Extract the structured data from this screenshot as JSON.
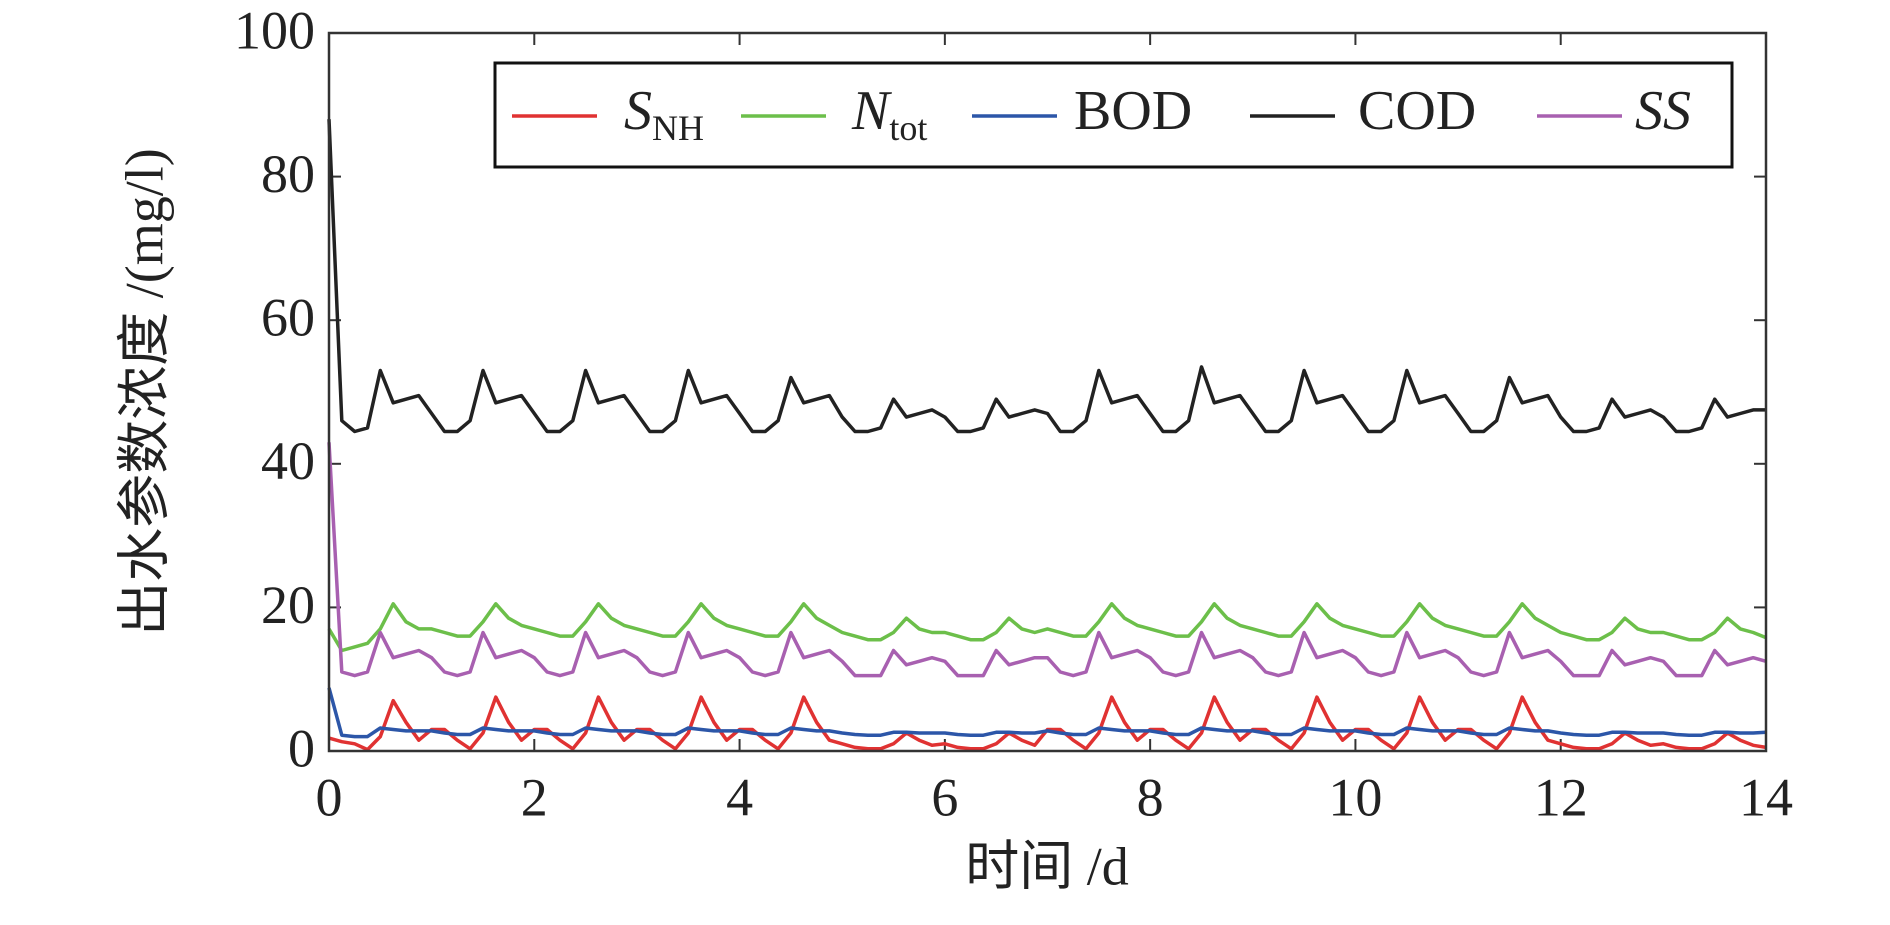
{
  "chart_data": {
    "type": "line",
    "x_label": "时间 /d",
    "y_label": "出水参数浓度 /(mg/l)",
    "xlim": [
      0,
      14
    ],
    "xticks": [
      0,
      2,
      4,
      6,
      8,
      10,
      12,
      14
    ],
    "ylim": [
      0,
      100
    ],
    "yticks": [
      0,
      20,
      40,
      60,
      80,
      100
    ],
    "legend": "top-right",
    "x": [
      0,
      0.125,
      0.25,
      0.375,
      0.5,
      0.625,
      0.75,
      0.875,
      1,
      1.125,
      1.25,
      1.375,
      1.5,
      1.625,
      1.75,
      1.875,
      2,
      2.125,
      2.25,
      2.375,
      2.5,
      2.625,
      2.75,
      2.875,
      3,
      3.125,
      3.25,
      3.375,
      3.5,
      3.625,
      3.75,
      3.875,
      4,
      4.125,
      4.25,
      4.375,
      4.5,
      4.625,
      4.75,
      4.875,
      5,
      5.125,
      5.25,
      5.375,
      5.5,
      5.625,
      5.75,
      5.875,
      6,
      6.125,
      6.25,
      6.375,
      6.5,
      6.625,
      6.75,
      6.875,
      7,
      7.125,
      7.25,
      7.375,
      7.5,
      7.625,
      7.75,
      7.875,
      8,
      8.125,
      8.25,
      8.375,
      8.5,
      8.625,
      8.75,
      8.875,
      9,
      9.125,
      9.25,
      9.375,
      9.5,
      9.625,
      9.75,
      9.875,
      10,
      10.125,
      10.25,
      10.375,
      10.5,
      10.625,
      10.75,
      10.875,
      11,
      11.125,
      11.25,
      11.375,
      11.5,
      11.625,
      11.75,
      11.875,
      12,
      12.125,
      12.25,
      12.375,
      12.5,
      12.625,
      12.75,
      12.875,
      13,
      13.125,
      13.25,
      13.375,
      13.5,
      13.625,
      13.75,
      13.875,
      14
    ],
    "series": [
      {
        "name": [
          "S",
          "NH"
        ],
        "italic": true,
        "color": "#e03232",
        "values": [
          1.8,
          1.3,
          1,
          0.2,
          2,
          7,
          4,
          1.5,
          3,
          3,
          1.5,
          0.3,
          2.5,
          7.5,
          4,
          1.5,
          3,
          3,
          1.5,
          0.3,
          2.5,
          7.5,
          4,
          1.5,
          3,
          3,
          1.5,
          0.3,
          2.5,
          7.5,
          4,
          1.5,
          3,
          3,
          1.5,
          0.3,
          2.5,
          7.5,
          4,
          1.5,
          1,
          0.5,
          0.3,
          0.3,
          1,
          2.5,
          1.5,
          0.8,
          1,
          0.5,
          0.3,
          0.3,
          1,
          2.5,
          1.5,
          0.8,
          3,
          3,
          1.5,
          0.3,
          2.5,
          7.5,
          4,
          1.5,
          3,
          3,
          1.5,
          0.3,
          2.5,
          7.5,
          4,
          1.5,
          3,
          3,
          1.5,
          0.3,
          2.5,
          7.5,
          4,
          1.5,
          3,
          3,
          1.5,
          0.3,
          2.5,
          7.5,
          4,
          1.5,
          3,
          3,
          1.5,
          0.3,
          2.5,
          7.5,
          4,
          1.5,
          1,
          0.5,
          0.3,
          0.3,
          1,
          2.5,
          1.5,
          0.8,
          1,
          0.5,
          0.3,
          0.3,
          1,
          2.5,
          1.5,
          0.8,
          0.5
        ]
      },
      {
        "name": [
          "N",
          "tot"
        ],
        "italic": true,
        "color": "#6cbf4a",
        "values": [
          17,
          14,
          14.5,
          15,
          17,
          20.5,
          18,
          17,
          17,
          16.5,
          16,
          16,
          18,
          20.5,
          18.5,
          17.5,
          17,
          16.5,
          16,
          16,
          18,
          20.5,
          18.5,
          17.5,
          17,
          16.5,
          16,
          16,
          18,
          20.5,
          18.5,
          17.5,
          17,
          16.5,
          16,
          16,
          18,
          20.5,
          18.5,
          17.5,
          16.5,
          16,
          15.5,
          15.5,
          16.5,
          18.5,
          17,
          16.5,
          16.5,
          16,
          15.5,
          15.5,
          16.5,
          18.5,
          17,
          16.5,
          17,
          16.5,
          16,
          16,
          18,
          20.5,
          18.5,
          17.5,
          17,
          16.5,
          16,
          16,
          18,
          20.5,
          18.5,
          17.5,
          17,
          16.5,
          16,
          16,
          18,
          20.5,
          18.5,
          17.5,
          17,
          16.5,
          16,
          16,
          18,
          20.5,
          18.5,
          17.5,
          17,
          16.5,
          16,
          16,
          18,
          20.5,
          18.5,
          17.5,
          16.5,
          16,
          15.5,
          15.5,
          16.5,
          18.5,
          17,
          16.5,
          16.5,
          16,
          15.5,
          15.5,
          16.5,
          18.5,
          17,
          16.5,
          15.8
        ]
      },
      {
        "name": [
          "BOD"
        ],
        "italic": false,
        "color": "#2c56a8",
        "values": [
          8.8,
          2.2,
          2,
          2,
          3.2,
          3,
          2.8,
          2.8,
          2.8,
          2.5,
          2.3,
          2.3,
          3.2,
          3,
          2.8,
          2.8,
          2.8,
          2.5,
          2.3,
          2.3,
          3.2,
          3,
          2.8,
          2.8,
          2.8,
          2.5,
          2.3,
          2.3,
          3.2,
          3,
          2.8,
          2.8,
          2.8,
          2.5,
          2.3,
          2.3,
          3.2,
          3,
          2.8,
          2.8,
          2.5,
          2.3,
          2.2,
          2.2,
          2.6,
          2.6,
          2.5,
          2.5,
          2.5,
          2.3,
          2.2,
          2.2,
          2.6,
          2.6,
          2.5,
          2.5,
          2.8,
          2.5,
          2.3,
          2.3,
          3.2,
          3,
          2.8,
          2.8,
          2.8,
          2.5,
          2.3,
          2.3,
          3.2,
          3,
          2.8,
          2.8,
          2.8,
          2.5,
          2.3,
          2.3,
          3.2,
          3,
          2.8,
          2.8,
          2.8,
          2.5,
          2.3,
          2.3,
          3.2,
          3,
          2.8,
          2.8,
          2.8,
          2.5,
          2.3,
          2.3,
          3.2,
          3,
          2.8,
          2.8,
          2.5,
          2.3,
          2.2,
          2.2,
          2.6,
          2.6,
          2.5,
          2.5,
          2.5,
          2.3,
          2.2,
          2.2,
          2.6,
          2.6,
          2.5,
          2.5,
          2.6
        ]
      },
      {
        "name": [
          "COD"
        ],
        "italic": false,
        "color": "#222222",
        "values": [
          88,
          46,
          44.5,
          45,
          53,
          48.5,
          49,
          49.5,
          47,
          44.5,
          44.5,
          46,
          53,
          48.5,
          49,
          49.5,
          47,
          44.5,
          44.5,
          46,
          53,
          48.5,
          49,
          49.5,
          47,
          44.5,
          44.5,
          46,
          53,
          48.5,
          49,
          49.5,
          47,
          44.5,
          44.5,
          46,
          52,
          48.5,
          49,
          49.5,
          46.5,
          44.5,
          44.5,
          45,
          49,
          46.5,
          47,
          47.5,
          46.5,
          44.5,
          44.5,
          45,
          49,
          46.5,
          47,
          47.5,
          47,
          44.5,
          44.5,
          46,
          53,
          48.5,
          49,
          49.5,
          47,
          44.5,
          44.5,
          46,
          53.5,
          48.5,
          49,
          49.5,
          47,
          44.5,
          44.5,
          46,
          53,
          48.5,
          49,
          49.5,
          47,
          44.5,
          44.5,
          46,
          53,
          48.5,
          49,
          49.5,
          47,
          44.5,
          44.5,
          46,
          52,
          48.5,
          49,
          49.5,
          46.5,
          44.5,
          44.5,
          45,
          49,
          46.5,
          47,
          47.5,
          46.5,
          44.5,
          44.5,
          45,
          49,
          46.5,
          47,
          47.5,
          47.5
        ]
      },
      {
        "name": [
          "SS"
        ],
        "italic": true,
        "color": "#a860b0",
        "values": [
          43,
          11,
          10.5,
          11,
          16.5,
          13,
          13.5,
          14,
          13,
          11,
          10.5,
          11,
          16.5,
          13,
          13.5,
          14,
          13,
          11,
          10.5,
          11,
          16.5,
          13,
          13.5,
          14,
          13,
          11,
          10.5,
          11,
          16.5,
          13,
          13.5,
          14,
          13,
          11,
          10.5,
          11,
          16.5,
          13,
          13.5,
          14,
          12.5,
          10.5,
          10.5,
          10.5,
          14,
          12,
          12.5,
          13,
          12.5,
          10.5,
          10.5,
          10.5,
          14,
          12,
          12.5,
          13,
          13,
          11,
          10.5,
          11,
          16.5,
          13,
          13.5,
          14,
          13,
          11,
          10.5,
          11,
          16.5,
          13,
          13.5,
          14,
          13,
          11,
          10.5,
          11,
          16.5,
          13,
          13.5,
          14,
          13,
          11,
          10.5,
          11,
          16.5,
          13,
          13.5,
          14,
          13,
          11,
          10.5,
          11,
          16.5,
          13,
          13.5,
          14,
          12.5,
          10.5,
          10.5,
          10.5,
          14,
          12,
          12.5,
          13,
          12.5,
          10.5,
          10.5,
          10.5,
          14,
          12,
          12.5,
          13,
          12.5
        ]
      }
    ]
  }
}
